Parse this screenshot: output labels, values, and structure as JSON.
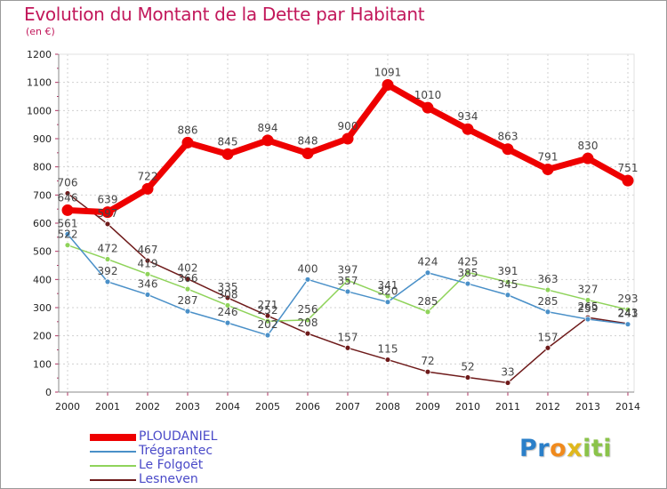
{
  "chart_data": {
    "type": "line",
    "title": "Evolution du Montant de la Dette par Habitant",
    "subtitle": "(en €)",
    "x": [
      "2000",
      "2001",
      "2002",
      "2003",
      "2004",
      "2005",
      "2006",
      "2007",
      "2008",
      "2009",
      "2010",
      "2011",
      "2012",
      "2013",
      "2014"
    ],
    "y_ticks": [
      "0",
      "100",
      "200",
      "300",
      "400",
      "500",
      "600",
      "700",
      "800",
      "900",
      "1000",
      "1100",
      "1200"
    ],
    "ylim": [
      0,
      1200
    ],
    "grid": true,
    "legend_position": "bottom-left",
    "series": [
      {
        "name": "PLOUDANIEL",
        "color": "#ee0000",
        "values": [
          646,
          639,
          722,
          886,
          845,
          894,
          848,
          900,
          1091,
          1010,
          934,
          863,
          791,
          830,
          751
        ],
        "labels": [
          "646",
          "639",
          "722",
          "886",
          "845",
          "894",
          "848",
          "900",
          "1091",
          "1010",
          "934",
          "863",
          "791",
          "830",
          "751"
        ]
      },
      {
        "name": "Trégarantec",
        "color": "#4a90c8",
        "values": [
          561,
          392,
          346,
          287,
          246,
          202,
          400,
          357,
          320,
          424,
          385,
          345,
          285,
          259,
          241
        ],
        "labels": [
          "561",
          "392",
          "346",
          "287",
          "246",
          "202",
          "400",
          "357",
          "320",
          "424",
          "385",
          "345",
          "285",
          "259",
          "241"
        ]
      },
      {
        "name": "Le Folgoët",
        "color": "#8fd35a",
        "values": [
          522,
          472,
          419,
          366,
          308,
          252,
          256,
          397,
          341,
          285,
          425,
          391,
          363,
          327,
          293
        ],
        "labels": [
          "522",
          "472",
          "419",
          "366",
          "308",
          "252",
          "256",
          "397",
          "341",
          "285",
          "425",
          "391",
          "363",
          "327",
          "293"
        ]
      },
      {
        "name": "Lesneven",
        "color": "#6e1a1a",
        "values": [
          706,
          597,
          467,
          402,
          335,
          271,
          208,
          157,
          115,
          72,
          52,
          33,
          157,
          265,
          243
        ],
        "labels": [
          "706",
          "597",
          "467",
          "402",
          "335",
          "271",
          "208",
          "157",
          "115",
          "72",
          "52",
          "33",
          "157",
          "265",
          "243"
        ]
      }
    ]
  },
  "legend": {
    "items": [
      {
        "label": "PLOUDANIEL",
        "color": "#ee0000"
      },
      {
        "label": "Trégarantec",
        "color": "#4a90c8"
      },
      {
        "label": "Le Folgoët",
        "color": "#8fd35a"
      },
      {
        "label": "Lesneven",
        "color": "#6e1a1a"
      }
    ]
  },
  "logo": {
    "text": "Proxiti",
    "letters": [
      "P",
      "r",
      "o",
      "x",
      "i",
      "t",
      "i"
    ],
    "colors": [
      "#2a7fc9",
      "#2a7fc9",
      "#f08a1c",
      "#e0b81c",
      "#8bc34a",
      "#8bc34a",
      "#8bc34a"
    ]
  }
}
